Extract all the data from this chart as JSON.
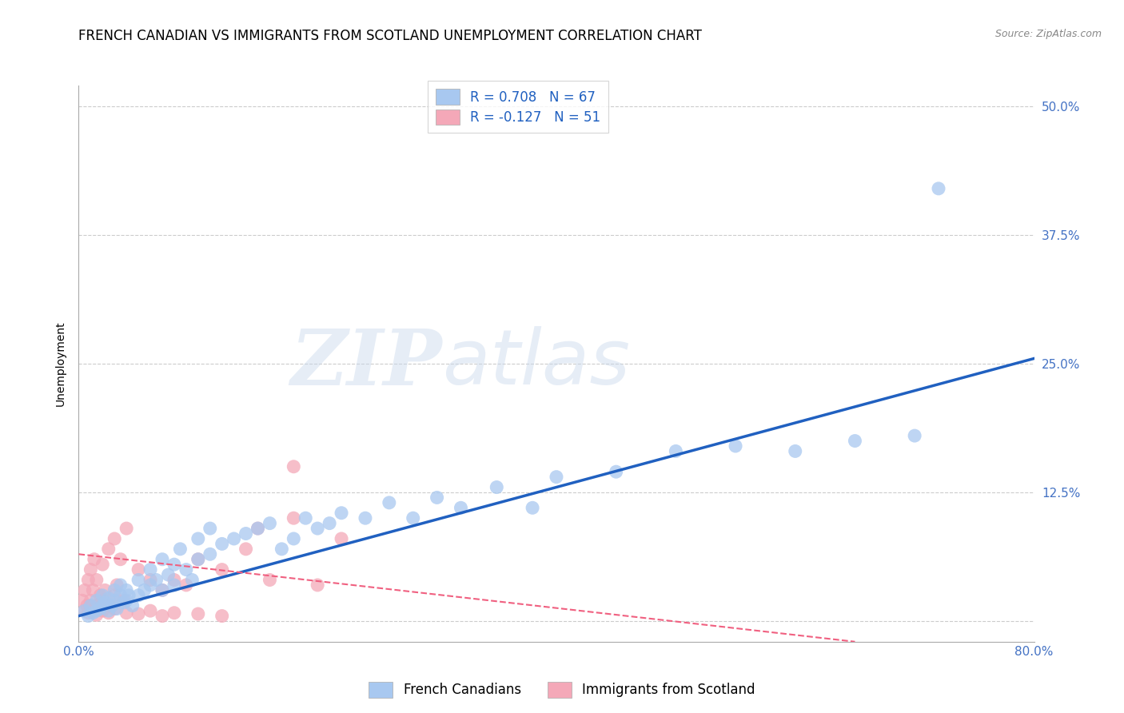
{
  "title": "FRENCH CANADIAN VS IMMIGRANTS FROM SCOTLAND UNEMPLOYMENT CORRELATION CHART",
  "source": "Source: ZipAtlas.com",
  "ylabel": "Unemployment",
  "xlim": [
    0.0,
    0.8
  ],
  "ylim": [
    -0.02,
    0.52
  ],
  "x_ticks": [
    0.0,
    0.2,
    0.4,
    0.6,
    0.8
  ],
  "x_tick_labels": [
    "0.0%",
    "",
    "",
    "",
    "80.0%"
  ],
  "y_ticks": [
    0.0,
    0.125,
    0.25,
    0.375,
    0.5
  ],
  "y_tick_labels": [
    "",
    "12.5%",
    "25.0%",
    "37.5%",
    "50.0%"
  ],
  "R_blue": 0.708,
  "N_blue": 67,
  "R_pink": -0.127,
  "N_pink": 51,
  "blue_color": "#A8C8F0",
  "pink_color": "#F4A8B8",
  "blue_line_color": "#2060C0",
  "pink_line_color": "#F06080",
  "watermark_zip": "ZIP",
  "watermark_atlas": "atlas",
  "legend_label_blue": "French Canadians",
  "legend_label_pink": "Immigrants from Scotland",
  "blue_scatter_x": [
    0.005,
    0.008,
    0.01,
    0.012,
    0.015,
    0.015,
    0.018,
    0.02,
    0.02,
    0.022,
    0.025,
    0.025,
    0.028,
    0.03,
    0.03,
    0.032,
    0.035,
    0.035,
    0.038,
    0.04,
    0.04,
    0.042,
    0.045,
    0.05,
    0.05,
    0.055,
    0.06,
    0.06,
    0.065,
    0.07,
    0.07,
    0.075,
    0.08,
    0.08,
    0.085,
    0.09,
    0.095,
    0.1,
    0.1,
    0.11,
    0.11,
    0.12,
    0.13,
    0.14,
    0.15,
    0.16,
    0.17,
    0.18,
    0.19,
    0.2,
    0.21,
    0.22,
    0.24,
    0.26,
    0.28,
    0.3,
    0.32,
    0.35,
    0.38,
    0.4,
    0.45,
    0.5,
    0.55,
    0.6,
    0.65,
    0.7,
    0.72
  ],
  "blue_scatter_y": [
    0.01,
    0.005,
    0.015,
    0.008,
    0.01,
    0.02,
    0.012,
    0.015,
    0.025,
    0.018,
    0.01,
    0.022,
    0.015,
    0.02,
    0.03,
    0.012,
    0.025,
    0.035,
    0.018,
    0.02,
    0.03,
    0.025,
    0.015,
    0.025,
    0.04,
    0.03,
    0.035,
    0.05,
    0.04,
    0.03,
    0.06,
    0.045,
    0.035,
    0.055,
    0.07,
    0.05,
    0.04,
    0.06,
    0.08,
    0.065,
    0.09,
    0.075,
    0.08,
    0.085,
    0.09,
    0.095,
    0.07,
    0.08,
    0.1,
    0.09,
    0.095,
    0.105,
    0.1,
    0.115,
    0.1,
    0.12,
    0.11,
    0.13,
    0.11,
    0.14,
    0.145,
    0.165,
    0.17,
    0.165,
    0.175,
    0.18,
    0.42
  ],
  "pink_scatter_x": [
    0.003,
    0.005,
    0.007,
    0.008,
    0.01,
    0.01,
    0.012,
    0.013,
    0.015,
    0.015,
    0.018,
    0.02,
    0.02,
    0.022,
    0.025,
    0.025,
    0.03,
    0.03,
    0.032,
    0.035,
    0.038,
    0.04,
    0.05,
    0.06,
    0.07,
    0.08,
    0.09,
    0.1,
    0.12,
    0.14,
    0.16,
    0.18,
    0.2,
    0.22,
    0.005,
    0.008,
    0.01,
    0.012,
    0.015,
    0.02,
    0.025,
    0.03,
    0.04,
    0.05,
    0.06,
    0.07,
    0.08,
    0.1,
    0.12,
    0.15,
    0.18
  ],
  "pink_scatter_y": [
    0.02,
    0.03,
    0.015,
    0.04,
    0.02,
    0.05,
    0.03,
    0.06,
    0.015,
    0.04,
    0.025,
    0.02,
    0.055,
    0.03,
    0.015,
    0.07,
    0.025,
    0.08,
    0.035,
    0.06,
    0.02,
    0.09,
    0.05,
    0.04,
    0.03,
    0.04,
    0.035,
    0.06,
    0.05,
    0.07,
    0.04,
    0.1,
    0.035,
    0.08,
    0.01,
    0.008,
    0.015,
    0.01,
    0.006,
    0.01,
    0.008,
    0.012,
    0.008,
    0.007,
    0.01,
    0.005,
    0.008,
    0.007,
    0.005,
    0.09,
    0.15
  ],
  "blue_line_x": [
    0.0,
    0.8
  ],
  "blue_line_y": [
    0.005,
    0.255
  ],
  "pink_line_x": [
    0.0,
    0.65
  ],
  "pink_line_y": [
    0.065,
    -0.02
  ],
  "background_color": "#FFFFFF",
  "grid_color": "#CCCCCC",
  "tick_color": "#4472C4",
  "title_fontsize": 12,
  "axis_label_fontsize": 10,
  "tick_fontsize": 11
}
